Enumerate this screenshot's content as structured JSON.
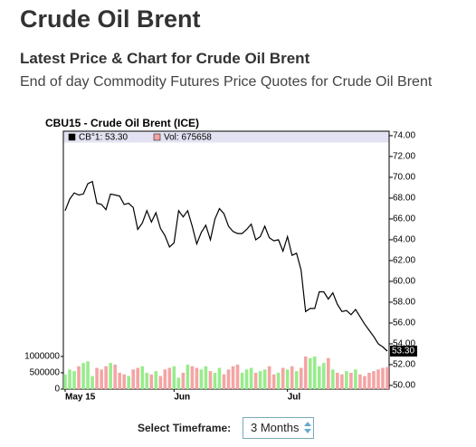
{
  "header": {
    "title": "Crude Oil Brent",
    "subtitle": "Latest Price & Chart for Crude Oil Brent",
    "description": "End of day Commodity Futures Price Quotes for Crude Oil Brent"
  },
  "chart_data": {
    "type": "line",
    "title": "CBU15 - Crude Oil Brent (ICE)",
    "categories": [
      "May 15",
      null,
      null,
      null,
      null,
      null,
      null,
      null,
      null,
      null,
      null,
      null,
      null,
      null,
      null,
      null,
      null,
      null,
      null,
      null,
      null,
      null,
      null,
      null,
      "Jun",
      null,
      null,
      null,
      null,
      null,
      null,
      null,
      null,
      null,
      null,
      null,
      null,
      null,
      null,
      null,
      null,
      null,
      null,
      null,
      null,
      null,
      null,
      null,
      null,
      "Jul",
      null,
      null,
      null,
      null,
      null,
      null,
      null,
      null,
      null,
      null,
      null,
      null,
      null,
      null,
      null,
      null,
      null,
      null,
      null,
      null,
      null,
      null
    ],
    "series": [
      {
        "name": "CB°1: 53.30",
        "color": "#000000",
        "values": [
          66.8,
          67.9,
          68.5,
          68.3,
          68.4,
          69.4,
          69.6,
          67.5,
          67.4,
          66.9,
          68.4,
          68.3,
          68.2,
          67.4,
          67.5,
          67.1,
          65.0,
          65.6,
          66.8,
          65.7,
          66.6,
          65.1,
          64.4,
          63.3,
          63.7,
          66.8,
          66.2,
          66.8,
          65.3,
          63.6,
          64.7,
          65.4,
          64.0,
          66.0,
          67.0,
          66.5,
          65.3,
          64.8,
          64.6,
          64.6,
          65.0,
          65.5,
          64.0,
          64.3,
          65.3,
          64.2,
          63.9,
          64.0,
          62.9,
          64.3,
          62.5,
          62.7,
          61.1,
          57.1,
          57.4,
          57.4,
          59.0,
          59.0,
          58.3,
          58.9,
          57.8,
          57.1,
          57.2,
          56.8,
          57.3,
          56.6,
          55.9,
          55.3,
          54.7,
          54.0,
          53.7,
          53.3
        ]
      },
      {
        "name": "Vol: 675658",
        "color": "#f4a4a4",
        "up_color": "#98ec8c",
        "type": "bar",
        "axis": "y2",
        "values": [
          450000,
          600000,
          550000,
          700000,
          800000,
          850000,
          400000,
          650000,
          600000,
          700000,
          800000,
          750000,
          500000,
          450000,
          400000,
          600000,
          650000,
          700000,
          500000,
          450000,
          550000,
          400000,
          600000,
          650000,
          700000,
          350000,
          500000,
          750000,
          700000,
          650000,
          600000,
          700000,
          550000,
          500000,
          650000,
          450000,
          600000,
          700000,
          750000,
          500000,
          600000,
          650000,
          500000,
          550000,
          600000,
          700000,
          450000,
          500000,
          650000,
          600000,
          700000,
          550000,
          650000,
          1000000,
          950000,
          1000000,
          700000,
          800000,
          950000,
          600000,
          500000,
          450000,
          550000,
          500000,
          600000,
          450000,
          400000,
          500000,
          550000,
          600000,
          650000,
          675658
        ]
      }
    ],
    "ylim": [
      49.65,
      74.43
    ],
    "yticks": [
      {
        "value": 50,
        "label": "50.00"
      },
      {
        "value": 52,
        "label": "52.00"
      },
      {
        "value": 54,
        "label": "54.00"
      },
      {
        "value": 56,
        "label": "56.00"
      },
      {
        "value": 58,
        "label": "58.00"
      },
      {
        "value": 60,
        "label": "60.00"
      },
      {
        "value": 62,
        "label": "62.00"
      },
      {
        "value": 64,
        "label": "64.00"
      },
      {
        "value": 66,
        "label": "66.00"
      },
      {
        "value": 68,
        "label": "68.00"
      },
      {
        "value": 70,
        "label": "70.00"
      },
      {
        "value": 72,
        "label": "72.00"
      },
      {
        "value": 74,
        "label": "74.00"
      }
    ],
    "y2lim": [
      0,
      7900000
    ],
    "y2ticks": [
      0,
      500000,
      1000000
    ],
    "last_price": {
      "value": 53.3,
      "label": "53.30"
    },
    "grid": false,
    "timeframe_label": "Select Timeframe:",
    "timeframe": "3 Months"
  }
}
